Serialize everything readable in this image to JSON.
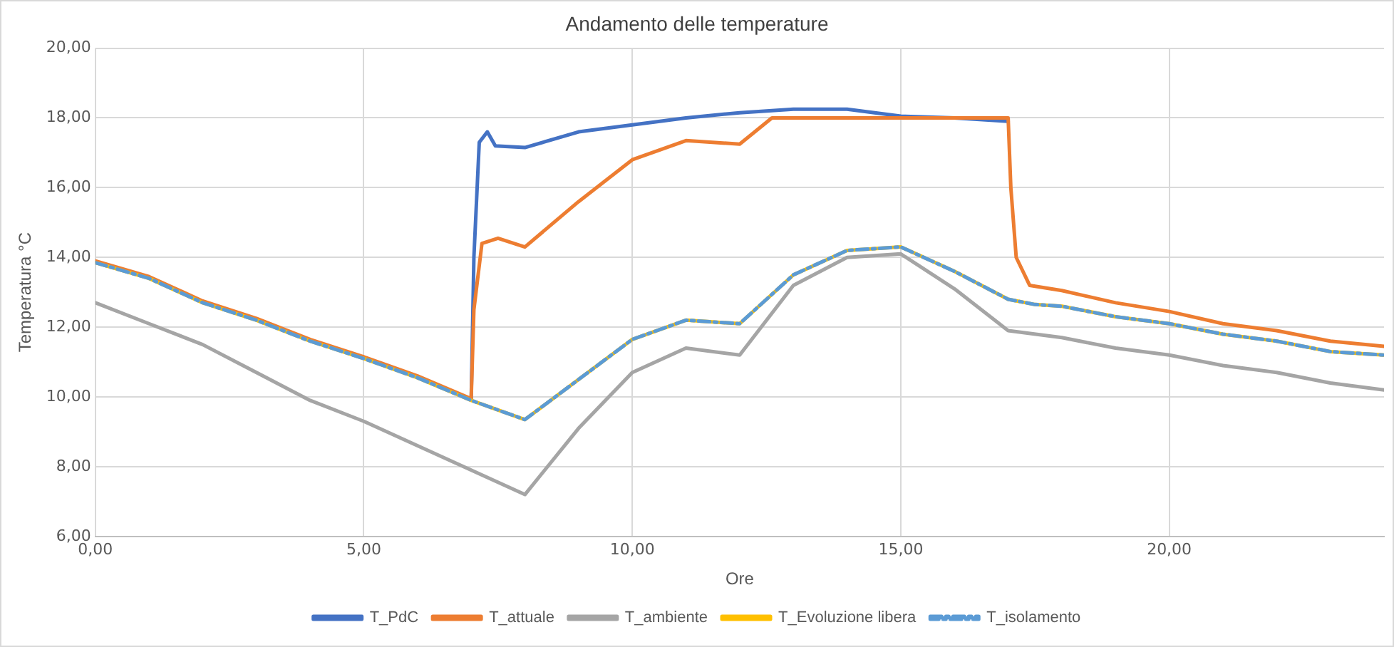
{
  "chart_data": {
    "type": "line",
    "title": "Andamento delle temperature",
    "xlabel": "Ore",
    "ylabel": "Temperatura °C",
    "xlim": [
      0,
      24
    ],
    "xticks": [
      {
        "value": 0,
        "label": "0,00"
      },
      {
        "value": 5,
        "label": "5,00"
      },
      {
        "value": 10,
        "label": "10,00"
      },
      {
        "value": 15,
        "label": "15,00"
      },
      {
        "value": 20,
        "label": "20,00"
      }
    ],
    "ylim": [
      6,
      20
    ],
    "yticks": [
      {
        "value": 6,
        "label": "6,00"
      },
      {
        "value": 8,
        "label": "8,00"
      },
      {
        "value": 10,
        "label": "10,00"
      },
      {
        "value": 12,
        "label": "12,00"
      },
      {
        "value": 14,
        "label": "14,00"
      },
      {
        "value": 16,
        "label": "16,00"
      },
      {
        "value": 18,
        "label": "18,00"
      },
      {
        "value": 20,
        "label": "20,00"
      }
    ],
    "grid": true,
    "legend": "bottom",
    "marker": "none",
    "series": [
      {
        "name": "T_PdC",
        "color": "#4472c4",
        "x": [
          7,
          7.05,
          7.15,
          7.3,
          7.45,
          8,
          9,
          10,
          11,
          12,
          13,
          14,
          15,
          16,
          17
        ],
        "values": [
          9.95,
          14,
          17.3,
          17.6,
          17.2,
          17.15,
          17.6,
          17.8,
          18,
          18.15,
          18.25,
          18.25,
          18.05,
          18,
          17.9
        ]
      },
      {
        "name": "T_attuale",
        "color": "#ed7d31",
        "x": [
          0,
          1,
          2,
          3,
          4,
          5,
          6,
          7,
          7.05,
          7.2,
          7.5,
          8,
          9,
          10,
          11,
          12,
          12.6,
          17,
          17.05,
          17.15,
          17.4,
          18,
          19,
          20,
          21,
          22,
          23,
          24
        ],
        "values": [
          13.9,
          13.45,
          12.75,
          12.25,
          11.65,
          11.15,
          10.6,
          9.95,
          12.5,
          14.4,
          14.55,
          14.3,
          15.6,
          16.8,
          17.35,
          17.25,
          18,
          18,
          16,
          14,
          13.2,
          13.05,
          12.7,
          12.45,
          12.1,
          11.9,
          11.6,
          11.45
        ]
      },
      {
        "name": "T_ambiente",
        "color": "#a5a5a5",
        "x": [
          0,
          1,
          2,
          3,
          4,
          5,
          6,
          7,
          8,
          9,
          10,
          11,
          12,
          13,
          14,
          15,
          16,
          17,
          18,
          19,
          20,
          21,
          22,
          23,
          24
        ],
        "values": [
          12.7,
          12.1,
          11.5,
          10.7,
          9.9,
          9.3,
          8.6,
          7.9,
          7.2,
          9.1,
          10.7,
          11.4,
          11.2,
          13.2,
          14,
          14.1,
          13.1,
          11.9,
          11.7,
          11.4,
          11.2,
          10.9,
          10.7,
          10.4,
          10.2
        ]
      },
      {
        "name": "T_Evoluzione libera",
        "color": "#ffc000",
        "x": [
          0,
          1,
          2,
          3,
          4,
          5,
          6,
          7,
          8,
          9,
          10,
          11,
          12,
          12.5,
          13,
          14,
          15,
          16,
          17,
          17.5,
          18,
          19,
          20,
          21,
          22,
          23,
          24
        ],
        "values": [
          13.85,
          13.4,
          12.7,
          12.2,
          11.6,
          11.1,
          10.55,
          9.9,
          9.35,
          10.5,
          11.65,
          12.2,
          12.1,
          12.8,
          13.5,
          14.2,
          14.3,
          13.6,
          12.8,
          12.65,
          12.6,
          12.3,
          12.1,
          11.8,
          11.6,
          11.3,
          11.2
        ]
      },
      {
        "name": "T_isolamento",
        "color": "#5b9bd5",
        "line_style": "dashed",
        "x": [
          0,
          1,
          2,
          3,
          4,
          5,
          6,
          7,
          8,
          9,
          10,
          11,
          12,
          12.5,
          13,
          14,
          15,
          16,
          17,
          17.5,
          18,
          19,
          20,
          21,
          22,
          23,
          24
        ],
        "values": [
          13.85,
          13.4,
          12.7,
          12.2,
          11.6,
          11.1,
          10.55,
          9.9,
          9.35,
          10.5,
          11.65,
          12.2,
          12.1,
          12.8,
          13.5,
          14.2,
          14.3,
          13.6,
          12.8,
          12.65,
          12.6,
          12.3,
          12.1,
          11.8,
          11.6,
          11.3,
          11.2
        ]
      }
    ]
  }
}
